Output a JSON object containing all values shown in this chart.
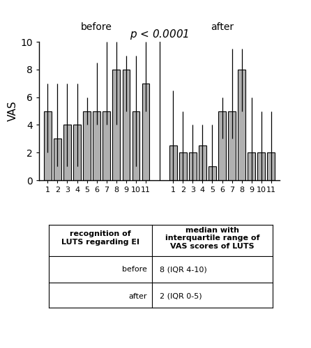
{
  "title": "p < 0.0001",
  "ylabel": "VAS",
  "bar_color": "#b0b0b0",
  "before_label": "before",
  "after_label": "after",
  "before_medians": [
    5,
    3,
    4,
    4,
    5,
    5,
    5,
    8,
    8,
    5,
    7
  ],
  "before_upper": [
    7,
    7,
    7,
    7,
    6,
    8.5,
    10,
    10,
    9,
    9,
    10
  ],
  "before_lower": [
    2,
    1,
    1,
    1,
    4,
    4,
    4,
    4,
    5,
    1,
    5
  ],
  "after_medians": [
    2.5,
    2,
    2,
    2.5,
    1,
    5,
    5,
    8,
    2,
    2,
    2
  ],
  "after_upper": [
    6.5,
    5,
    4,
    4,
    4,
    6,
    9.5,
    9.5,
    6,
    5,
    5
  ],
  "after_lower": [
    0,
    0,
    0,
    0,
    0,
    3,
    3,
    5,
    0,
    0,
    0
  ],
  "xlim_before": [
    0.3,
    11.7
  ],
  "xlim_after": [
    0.3,
    11.7
  ],
  "ylim": [
    0,
    10
  ],
  "yticks": [
    0,
    2,
    4,
    6,
    8,
    10
  ],
  "xticks": [
    1,
    2,
    3,
    4,
    5,
    6,
    7,
    8,
    9,
    10,
    11
  ],
  "table_col1_header": "recognition of\nLUTS regarding EI",
  "table_col2_header": "median with\ninterquartile range of\nVAS scores of LUTS",
  "table_row1_label": "before",
  "table_row1_value": "8 (IQR 4-10)",
  "table_row2_label": "after",
  "table_row2_value": "2 (IQR 0-5)"
}
